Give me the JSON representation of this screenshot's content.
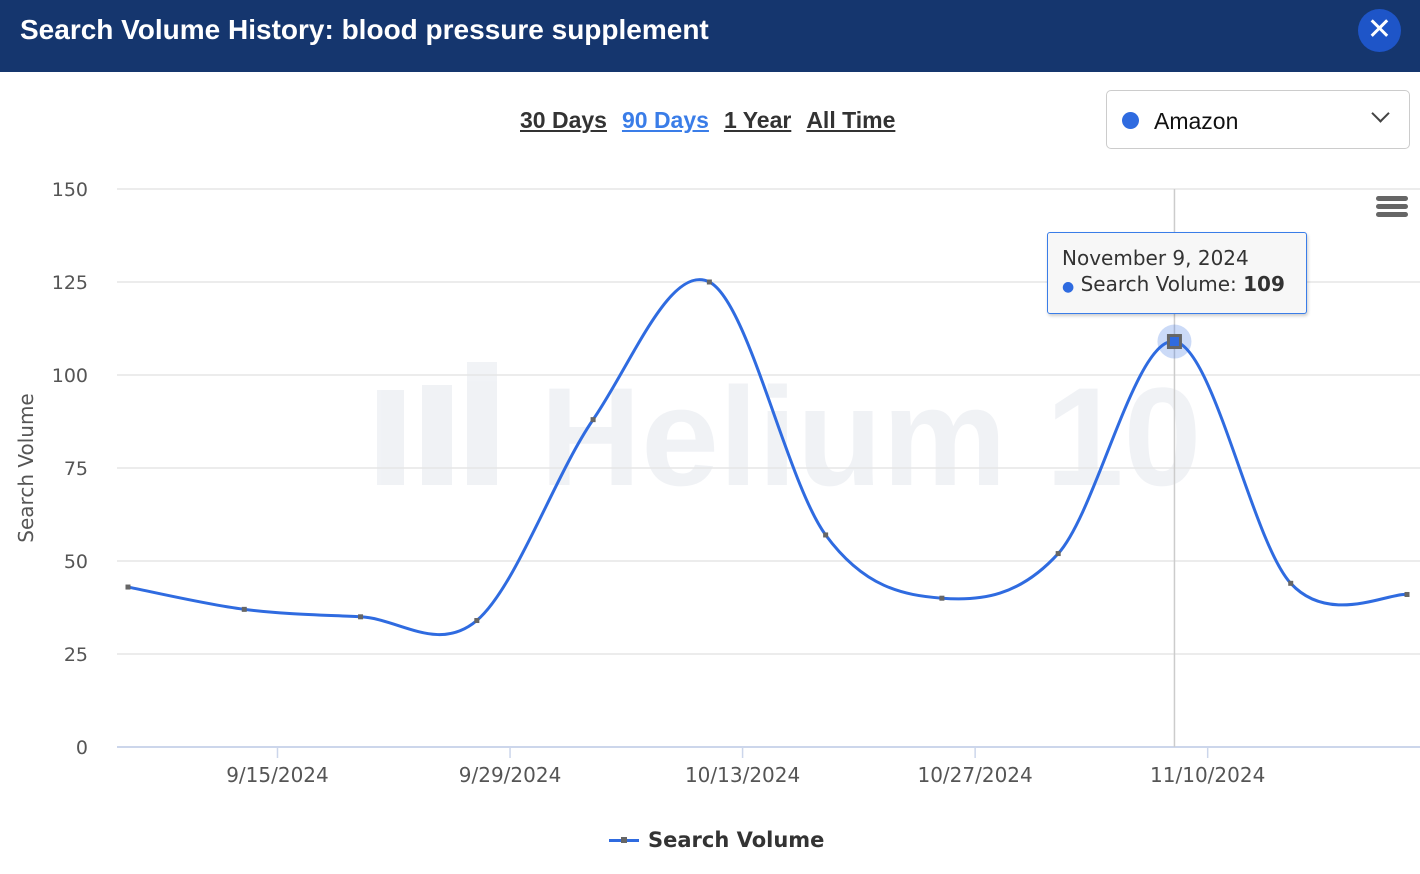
{
  "header": {
    "title": "Search Volume History: blood pressure supplement",
    "close_icon": "close-icon"
  },
  "ranges": [
    {
      "label": "30 Days",
      "active": false
    },
    {
      "label": "90 Days",
      "active": true
    },
    {
      "label": "1 Year",
      "active": false
    },
    {
      "label": "All Time",
      "active": false
    }
  ],
  "marketplace": {
    "label": "Amazon",
    "dot_color": "#2f6be0"
  },
  "tooltip": {
    "date": "November 9, 2024",
    "series": "Search Volume:",
    "value": "109"
  },
  "watermark": "Helium 10",
  "chart_data": {
    "type": "line",
    "title": "",
    "xlabel": "",
    "ylabel": "Search Volume",
    "ylim": [
      0,
      150
    ],
    "yticks": [
      0,
      25,
      50,
      75,
      100,
      125,
      150
    ],
    "xticks": [
      "9/15/2024",
      "9/29/2024",
      "10/13/2024",
      "10/27/2024",
      "11/10/2024"
    ],
    "x": [
      "2024-09-07",
      "2024-09-14",
      "2024-09-21",
      "2024-09-28",
      "2024-10-05",
      "2024-10-12",
      "2024-10-19",
      "2024-10-26",
      "2024-11-02",
      "2024-11-09",
      "2024-11-16",
      "2024-11-23"
    ],
    "series": [
      {
        "name": "Search Volume",
        "color": "#2f6be0",
        "values": [
          43,
          37,
          35,
          34,
          88,
          125,
          57,
          40,
          52,
          109,
          44,
          41
        ]
      }
    ],
    "highlighted_index": 9,
    "grid": true,
    "legend": "bottom-center"
  }
}
